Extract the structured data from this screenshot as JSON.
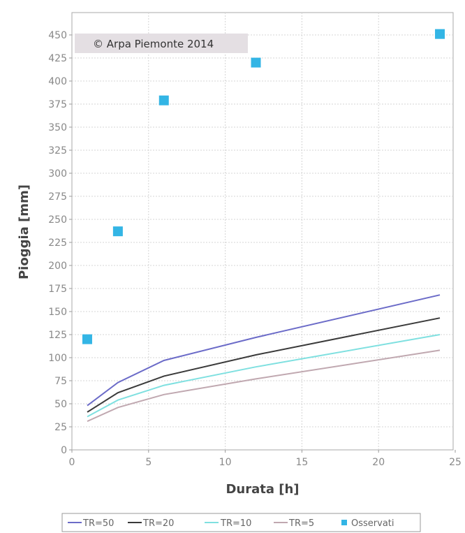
{
  "chart_data": {
    "type": "line",
    "xlabel": "Durata [h]",
    "ylabel": "Pioggia [mm]",
    "xlim": [
      0,
      25
    ],
    "ylim": [
      0,
      450
    ],
    "x_ticks": [
      0,
      5,
      10,
      15,
      20,
      25
    ],
    "y_ticks": [
      0,
      25,
      50,
      75,
      100,
      125,
      150,
      175,
      200,
      225,
      250,
      275,
      300,
      325,
      350,
      375,
      400,
      425,
      450
    ],
    "grid": true,
    "legend_position": "bottom",
    "annotation": "© Arpa Piemonte 2014",
    "series": [
      {
        "name": "TR=50",
        "type": "line",
        "color": "#6b6bc8",
        "x": [
          1,
          3,
          6,
          12,
          24
        ],
        "y": [
          48,
          73,
          97,
          122,
          168
        ]
      },
      {
        "name": "TR=20",
        "type": "line",
        "color": "#3a3a3a",
        "x": [
          1,
          3,
          6,
          12,
          24
        ],
        "y": [
          41,
          62,
          80,
          103,
          143
        ]
      },
      {
        "name": "TR=10",
        "type": "line",
        "color": "#7fe0e0",
        "x": [
          1,
          3,
          6,
          12,
          24
        ],
        "y": [
          36,
          54,
          70,
          90,
          125
        ]
      },
      {
        "name": "TR=5",
        "type": "line",
        "color": "#c0a8b0",
        "x": [
          1,
          3,
          6,
          12,
          24
        ],
        "y": [
          31,
          46,
          60,
          77,
          108
        ]
      },
      {
        "name": "Osservati",
        "type": "scatter",
        "color": "#33b5e5",
        "x": [
          1,
          3,
          6,
          12,
          24
        ],
        "y": [
          120,
          237,
          379,
          420,
          451
        ]
      }
    ]
  }
}
